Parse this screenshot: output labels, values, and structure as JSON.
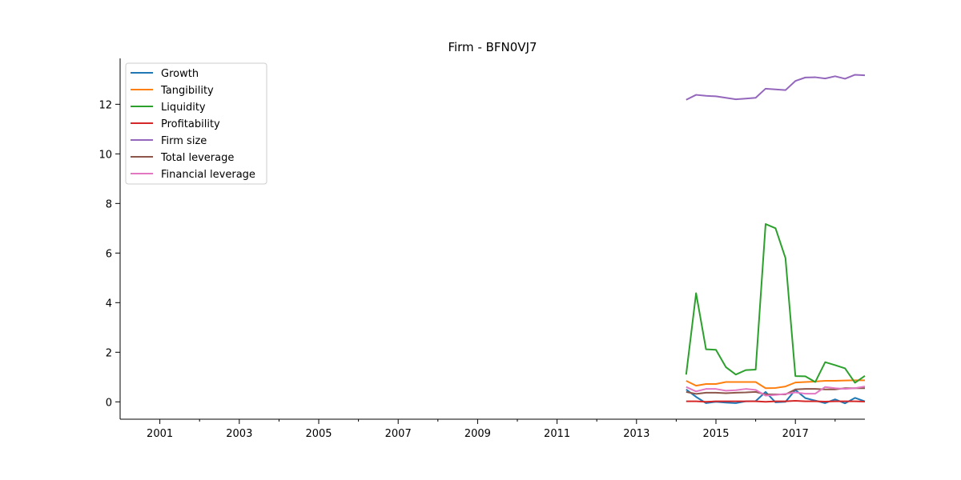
{
  "chart_data": {
    "type": "line",
    "title": "Firm - BFN0VJ7",
    "xlabel": "",
    "ylabel": "",
    "xlim": [
      2000.0,
      2018.75
    ],
    "ylim": [
      -0.7,
      13.85
    ],
    "x_ticks": [
      2001,
      2003,
      2005,
      2007,
      2009,
      2011,
      2013,
      2015,
      2017
    ],
    "x_minor_ticks": [
      2002,
      2004,
      2006,
      2008,
      2010,
      2012,
      2014,
      2016,
      2018
    ],
    "y_ticks": [
      0,
      2,
      4,
      6,
      8,
      10,
      12
    ],
    "legend_position": "upper-left",
    "grid": false,
    "x": [
      2014.25,
      2014.5,
      2014.75,
      2015.0,
      2015.25,
      2015.5,
      2015.75,
      2016.0,
      2016.25,
      2016.5,
      2016.75,
      2017.0,
      2017.25,
      2017.5,
      2017.75,
      2018.0,
      2018.25,
      2018.5,
      2018.75
    ],
    "series": [
      {
        "name": "Growth",
        "color": "#1f77b4",
        "values": [
          0.5,
          0.2,
          -0.05,
          0.0,
          -0.03,
          -0.05,
          0.02,
          0.03,
          0.4,
          -0.02,
          0.0,
          0.48,
          0.15,
          0.05,
          -0.05,
          0.1,
          -0.06,
          0.16,
          0.02
        ]
      },
      {
        "name": "Tangibility",
        "color": "#ff7f0e",
        "values": [
          0.85,
          0.65,
          0.72,
          0.72,
          0.8,
          0.8,
          0.8,
          0.8,
          0.55,
          0.56,
          0.62,
          0.78,
          0.8,
          0.82,
          0.85,
          0.85,
          0.86,
          0.87,
          0.87
        ]
      },
      {
        "name": "Liquidity",
        "color": "#2ca02c",
        "values": [
          1.1,
          4.38,
          2.12,
          2.1,
          1.4,
          1.1,
          1.28,
          1.3,
          7.17,
          7.0,
          5.8,
          1.04,
          1.03,
          0.8,
          1.6,
          1.48,
          1.35,
          0.77,
          1.05
        ]
      },
      {
        "name": "Profitability",
        "color": "#d62728",
        "values": [
          0.02,
          0.02,
          0.0,
          0.02,
          0.02,
          0.02,
          0.02,
          0.02,
          0.0,
          0.02,
          0.02,
          0.04,
          0.02,
          0.02,
          0.01,
          0.02,
          0.02,
          0.02,
          0.01
        ]
      },
      {
        "name": "Firm size",
        "color": "#9467bd",
        "values": [
          12.18,
          12.38,
          12.34,
          12.32,
          12.26,
          12.2,
          12.23,
          12.26,
          12.63,
          12.6,
          12.57,
          12.94,
          13.08,
          13.09,
          13.04,
          13.13,
          13.03,
          13.19,
          13.17
        ]
      },
      {
        "name": "Total leverage",
        "color": "#8c564b",
        "values": [
          0.4,
          0.32,
          0.37,
          0.37,
          0.35,
          0.37,
          0.38,
          0.4,
          0.3,
          0.3,
          0.3,
          0.5,
          0.52,
          0.52,
          0.5,
          0.5,
          0.55,
          0.55,
          0.55
        ]
      },
      {
        "name": "Financial leverage",
        "color": "#e377c2",
        "values": [
          0.6,
          0.42,
          0.52,
          0.52,
          0.45,
          0.47,
          0.52,
          0.48,
          0.25,
          0.28,
          0.32,
          0.38,
          0.33,
          0.33,
          0.6,
          0.55,
          0.52,
          0.55,
          0.62
        ]
      }
    ]
  }
}
